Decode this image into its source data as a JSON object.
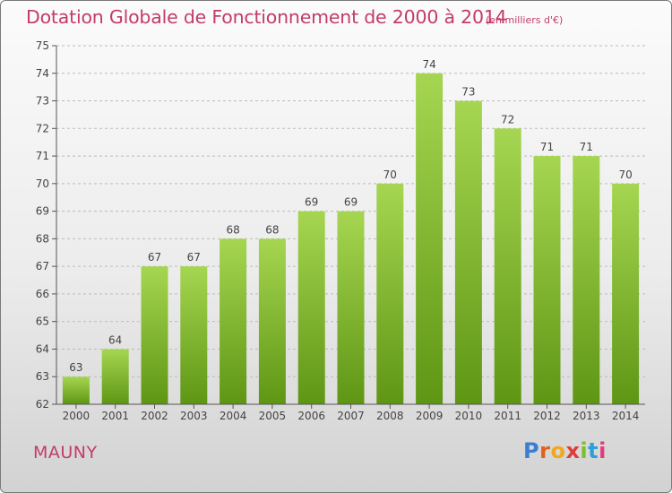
{
  "header": {
    "title": "Dotation Globale de Fonctionnement de 2000 à 2014",
    "unit": "(en milliers d'€)"
  },
  "footer": {
    "commune": "MAUNY",
    "brand_letters": [
      "P",
      "r",
      "o",
      "x",
      "i",
      "t",
      "i"
    ],
    "brand_colors": [
      "#3a7fd0",
      "#e0621e",
      "#f0a81e",
      "#e23b3b",
      "#7bbf2a",
      "#2d9fd8",
      "#e23b7a"
    ]
  },
  "colors": {
    "text": "#c43b6a",
    "bar_light": "#a6d651",
    "bar_dark": "#5e9614",
    "grid": "#bbbbbb",
    "axis": "#555555"
  },
  "chart_data": {
    "type": "bar",
    "title": "Dotation Globale de Fonctionnement de 2000 à 2014",
    "subtitle": "(en milliers d'€)",
    "xlabel": "",
    "ylabel": "",
    "categories": [
      "2000",
      "2001",
      "2002",
      "2003",
      "2004",
      "2005",
      "2006",
      "2007",
      "2008",
      "2009",
      "2010",
      "2011",
      "2012",
      "2013",
      "2014"
    ],
    "values": [
      63,
      64,
      67,
      67,
      68,
      68,
      69,
      69,
      70,
      74,
      73,
      72,
      71,
      71,
      70
    ],
    "data_labels": [
      "63",
      "64",
      "67",
      "67",
      "68",
      "68",
      "69",
      "69",
      "70",
      "74",
      "73",
      "72",
      "71",
      "71",
      "70"
    ],
    "y_ticks": [
      "62",
      "63",
      "64",
      "65",
      "66",
      "67",
      "68",
      "69",
      "70",
      "71",
      "72",
      "73",
      "74",
      "75"
    ],
    "ylim": [
      62,
      75
    ],
    "grid": true
  }
}
